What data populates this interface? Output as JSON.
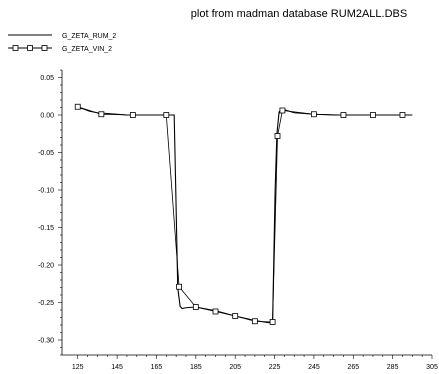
{
  "chart_data": {
    "type": "line",
    "title": "plot from madman database RUM2ALL.DBS",
    "xlabel": "",
    "ylabel": "",
    "xlim": [
      117,
      305
    ],
    "ylim": [
      -0.32,
      0.06
    ],
    "x_ticks": [
      "125",
      "145",
      "165",
      "185",
      "205",
      "225",
      "245",
      "265",
      "285",
      "305"
    ],
    "y_ticks": [
      "0.05",
      "0.00",
      "-0.05",
      "-0.10",
      "-0.15",
      "-0.20",
      "-0.25",
      "-0.30"
    ],
    "x_tick_values": [
      125,
      145,
      165,
      185,
      205,
      225,
      245,
      265,
      285,
      305
    ],
    "y_tick_values": [
      0.05,
      0.0,
      -0.05,
      -0.1,
      -0.15,
      -0.2,
      -0.25,
      -0.3
    ],
    "grid": false,
    "legend_position": "top-left",
    "series": [
      {
        "name": "G_ZETA_RUM_2",
        "marker": "none",
        "color": "#000000",
        "x": [
          125,
          128,
          131,
          135,
          140,
          150,
          160,
          170,
          174,
          174.8,
          175.8,
          177,
          178,
          180,
          185,
          195,
          205,
          215,
          222,
          224,
          225.3,
          226.2,
          227.3,
          228.5,
          230,
          235,
          245,
          255,
          265,
          275,
          285,
          295
        ],
        "y": [
          0.01,
          0.008,
          0.005,
          0.003,
          0.002,
          0.0,
          0.0,
          0.0,
          0.0,
          -0.1,
          -0.23,
          -0.255,
          -0.258,
          -0.257,
          -0.256,
          -0.261,
          -0.268,
          -0.274,
          -0.277,
          -0.276,
          -0.1,
          -0.025,
          0.004,
          0.008,
          0.007,
          0.003,
          0.001,
          0.0,
          0.0,
          0.0,
          0.0,
          0.0
        ]
      },
      {
        "name": "G_ZETA_VIN_2",
        "marker": "square",
        "color": "#000000",
        "x": [
          125,
          137,
          153,
          170,
          176.5,
          185,
          195,
          205,
          215,
          224,
          226.5,
          229,
          245,
          260,
          275,
          290
        ],
        "y": [
          0.011,
          0.001,
          0.0,
          0.0,
          -0.229,
          -0.256,
          -0.262,
          -0.268,
          -0.275,
          -0.276,
          -0.028,
          0.006,
          0.001,
          0.0,
          0.0,
          0.0
        ]
      }
    ]
  }
}
